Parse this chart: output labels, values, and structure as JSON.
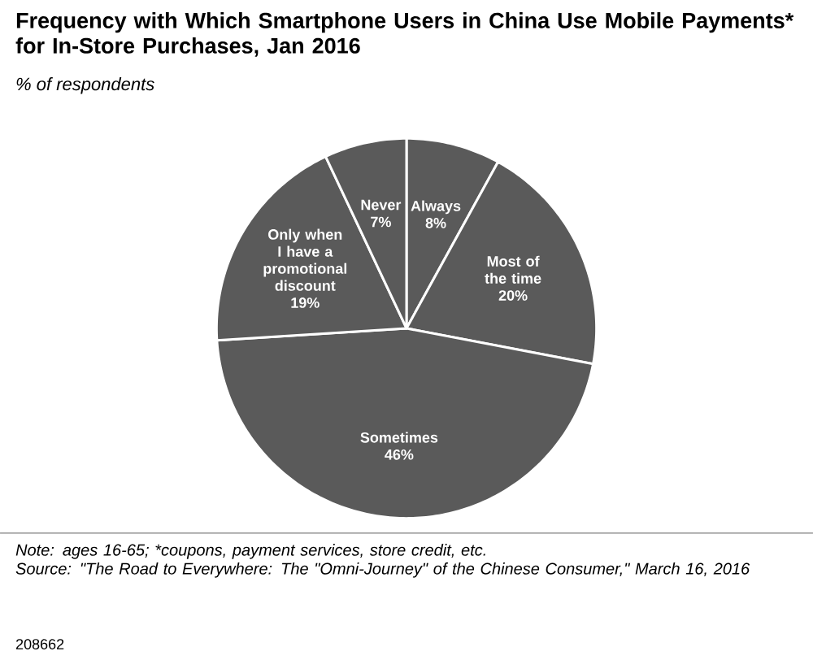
{
  "chart_data": {
    "type": "pie",
    "title": "Frequency with Which Smartphone Users in China Use Mobile Payments* for In-Store Purchases, Jan 2016",
    "subtitle": "% of respondents",
    "categories": [
      "Always",
      "Most of the time",
      "Sometimes",
      "Only when I have a promotional discount",
      "Never"
    ],
    "values": [
      8,
      20,
      46,
      19,
      7
    ],
    "value_labels": [
      "8%",
      "20%",
      "46%",
      "19%",
      "7%"
    ],
    "colors": [
      "#5a5a5a",
      "#5a5a5a",
      "#5a5a5a",
      "#5a5a5a",
      "#5a5a5a"
    ],
    "annotations": [
      "Note: ages 16-65; *coupons, payment services, store credit, etc.",
      "Source: \"The Road to Everywhere: The \"Omni-Journey\" of the Chinese Consumer,\" March 16, 2016",
      "208662"
    ]
  }
}
